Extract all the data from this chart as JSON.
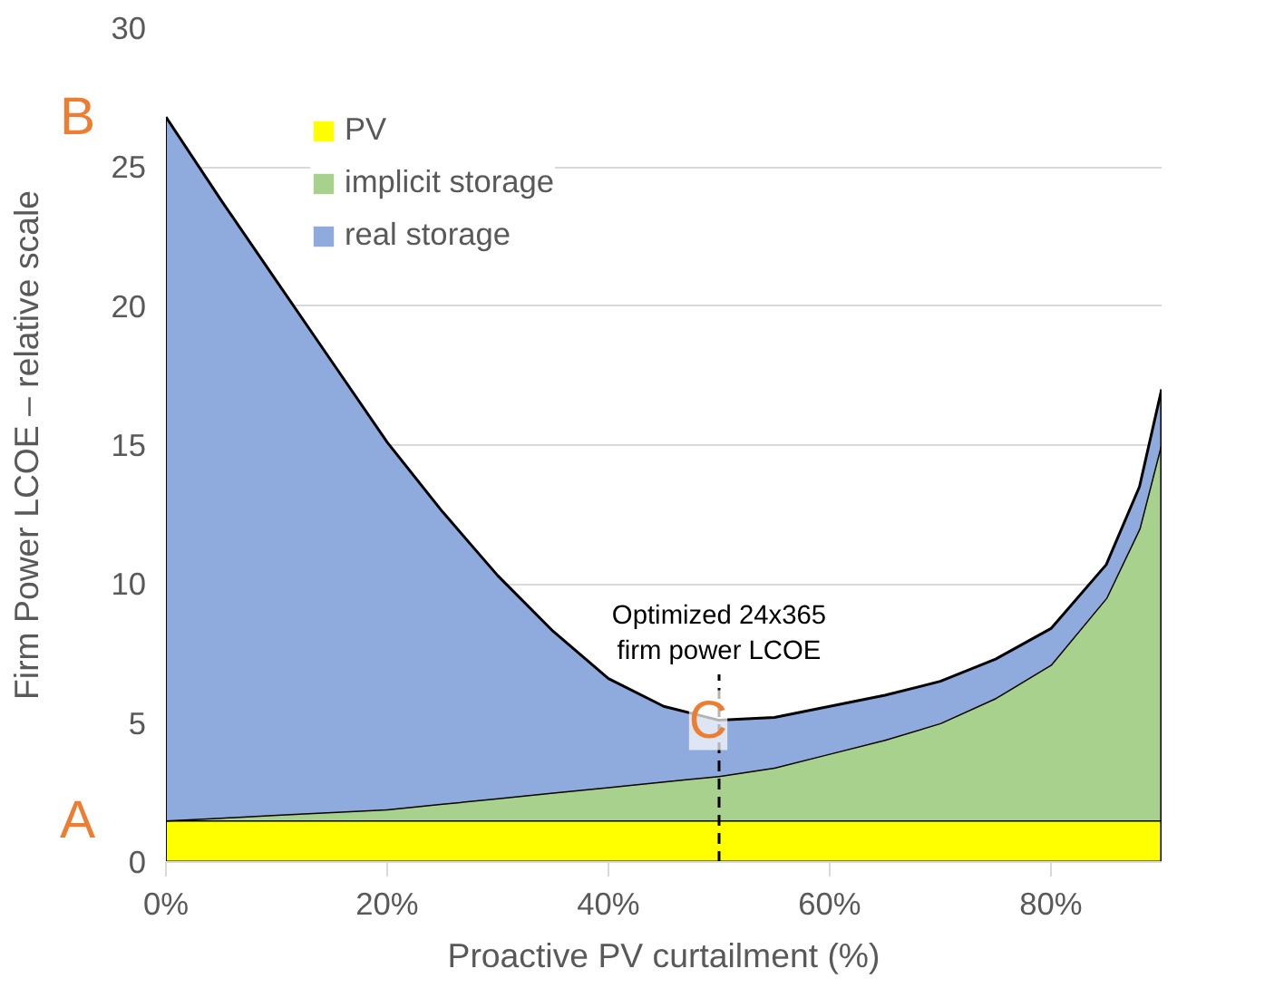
{
  "chart_data": {
    "type": "area",
    "stacked": true,
    "xlabel": "Proactive PV curtailment (%)",
    "ylabel": "Firm Power LCOE – relative scale",
    "x": [
      0,
      5,
      10,
      15,
      20,
      25,
      30,
      35,
      40,
      45,
      50,
      55,
      60,
      65,
      70,
      75,
      80,
      85,
      88,
      90
    ],
    "series": [
      {
        "name": "PV",
        "color": "#ffff00",
        "values": [
          1.5,
          1.5,
          1.5,
          1.5,
          1.5,
          1.5,
          1.5,
          1.5,
          1.5,
          1.5,
          1.5,
          1.5,
          1.5,
          1.5,
          1.5,
          1.5,
          1.5,
          1.5,
          1.5,
          1.5
        ]
      },
      {
        "name": "implicit storage",
        "color": "#a9d18e",
        "values": [
          0,
          0.1,
          0.2,
          0.3,
          0.4,
          0.6,
          0.8,
          1.0,
          1.2,
          1.4,
          1.6,
          1.9,
          2.4,
          2.9,
          3.5,
          4.4,
          5.6,
          8.0,
          10.5,
          13.6
        ]
      },
      {
        "name": "real storage",
        "color": "#8faadc",
        "values": [
          25.3,
          22.2,
          19.2,
          16.2,
          13.2,
          10.5,
          8.0,
          5.8,
          3.9,
          2.7,
          2.0,
          1.8,
          1.7,
          1.6,
          1.5,
          1.4,
          1.3,
          1.2,
          1.5,
          1.9
        ]
      }
    ],
    "xlim": [
      0,
      90
    ],
    "ylim": [
      0,
      30
    ],
    "xticks": [
      {
        "value": 0,
        "label": "0%"
      },
      {
        "value": 20,
        "label": "20%"
      },
      {
        "value": 40,
        "label": "40%"
      },
      {
        "value": 60,
        "label": "60%"
      },
      {
        "value": 80,
        "label": "80%"
      }
    ],
    "yticks": [
      0,
      5,
      10,
      15,
      20,
      25,
      30
    ],
    "grid": "y",
    "legend": "top left",
    "ref_lines": [
      {
        "axis": "x",
        "value": 50,
        "label": "Optimized 24x365\nfirm power LCOE",
        "line_style": "dashed"
      }
    ],
    "annotations": [
      "A",
      "B",
      {
        "text": "C",
        "x": 50,
        "y": 5.1
      }
    ]
  }
}
